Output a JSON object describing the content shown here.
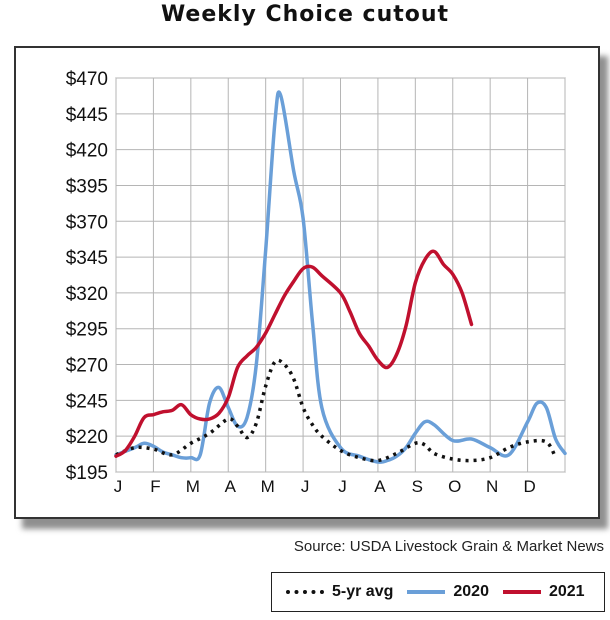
{
  "title": "Weekly Choice cutout",
  "source": "Source: USDA Livestock Grain & Market News",
  "chart_data": {
    "type": "line",
    "title": "Weekly Choice cutout",
    "ylim": [
      195,
      470
    ],
    "y_ticks": [
      "$470",
      "$445",
      "$420",
      "$395",
      "$370",
      "$345",
      "$320",
      "$295",
      "$270",
      "$245",
      "$220",
      "$195"
    ],
    "y_tick_values": [
      470,
      445,
      420,
      395,
      370,
      345,
      320,
      295,
      270,
      245,
      220,
      195
    ],
    "categories": [
      "J",
      "F",
      "M",
      "A",
      "M",
      "J",
      "J",
      "A",
      "S",
      "O",
      "N",
      "D"
    ],
    "grid": true,
    "legend_position": "bottom-right",
    "series": [
      {
        "name": "5-yr avg",
        "color": "#111111",
        "style": "dotted",
        "x": [
          0,
          0.5,
          1,
          1.5,
          2,
          2.5,
          3,
          3.25,
          3.5,
          3.75,
          4,
          4.25,
          4.5,
          4.75,
          5,
          5.25,
          5.5,
          6,
          6.5,
          7,
          7.5,
          8,
          8.25,
          8.5,
          9,
          9.5,
          10,
          10.5,
          11,
          11.5,
          11.75
        ],
        "values": [
          207,
          212,
          211,
          207,
          215,
          222,
          232,
          227,
          219,
          229,
          255,
          272,
          270,
          260,
          240,
          228,
          220,
          210,
          205,
          203,
          208,
          215,
          214,
          208,
          204,
          203,
          205,
          212,
          216,
          216,
          205
        ]
      },
      {
        "name": "2020",
        "color": "#6a9fd8",
        "style": "solid",
        "x": [
          0,
          0.5,
          0.75,
          1,
          1.25,
          1.5,
          1.75,
          2,
          2.25,
          2.5,
          2.75,
          3,
          3.25,
          3.5,
          3.75,
          4,
          4.25,
          4.4,
          4.75,
          5,
          5.25,
          5.5,
          6,
          6.5,
          7,
          7.25,
          7.5,
          7.75,
          8,
          8.25,
          8.5,
          9,
          9.5,
          10,
          10.5,
          11,
          11.25,
          11.5,
          11.75,
          12
        ],
        "values": [
          207,
          212,
          215,
          213,
          209,
          207,
          205,
          205,
          207,
          243,
          254,
          240,
          227,
          233,
          270,
          350,
          440,
          458,
          405,
          372,
          300,
          240,
          212,
          206,
          202,
          203,
          206,
          212,
          222,
          230,
          228,
          217,
          218,
          212,
          207,
          230,
          243,
          240,
          218,
          208
        ]
      },
      {
        "name": "2021",
        "color": "#c0102e",
        "style": "solid",
        "x": [
          0,
          0.25,
          0.5,
          0.75,
          1,
          1.25,
          1.5,
          1.75,
          2,
          2.25,
          2.5,
          2.75,
          3,
          3.25,
          3.5,
          3.75,
          4,
          4.25,
          4.5,
          4.75,
          5,
          5.25,
          5.5,
          6,
          6.25,
          6.5,
          6.75,
          7,
          7.25,
          7.5,
          7.75,
          8,
          8.25,
          8.5,
          8.75,
          9,
          9.25,
          9.5
        ],
        "values": [
          206,
          210,
          220,
          233,
          235,
          237,
          238,
          242,
          235,
          232,
          232,
          236,
          247,
          268,
          276,
          282,
          292,
          305,
          318,
          328,
          337,
          338,
          332,
          320,
          307,
          292,
          283,
          273,
          268,
          277,
          297,
          327,
          343,
          349,
          340,
          333,
          320,
          298
        ]
      }
    ]
  }
}
